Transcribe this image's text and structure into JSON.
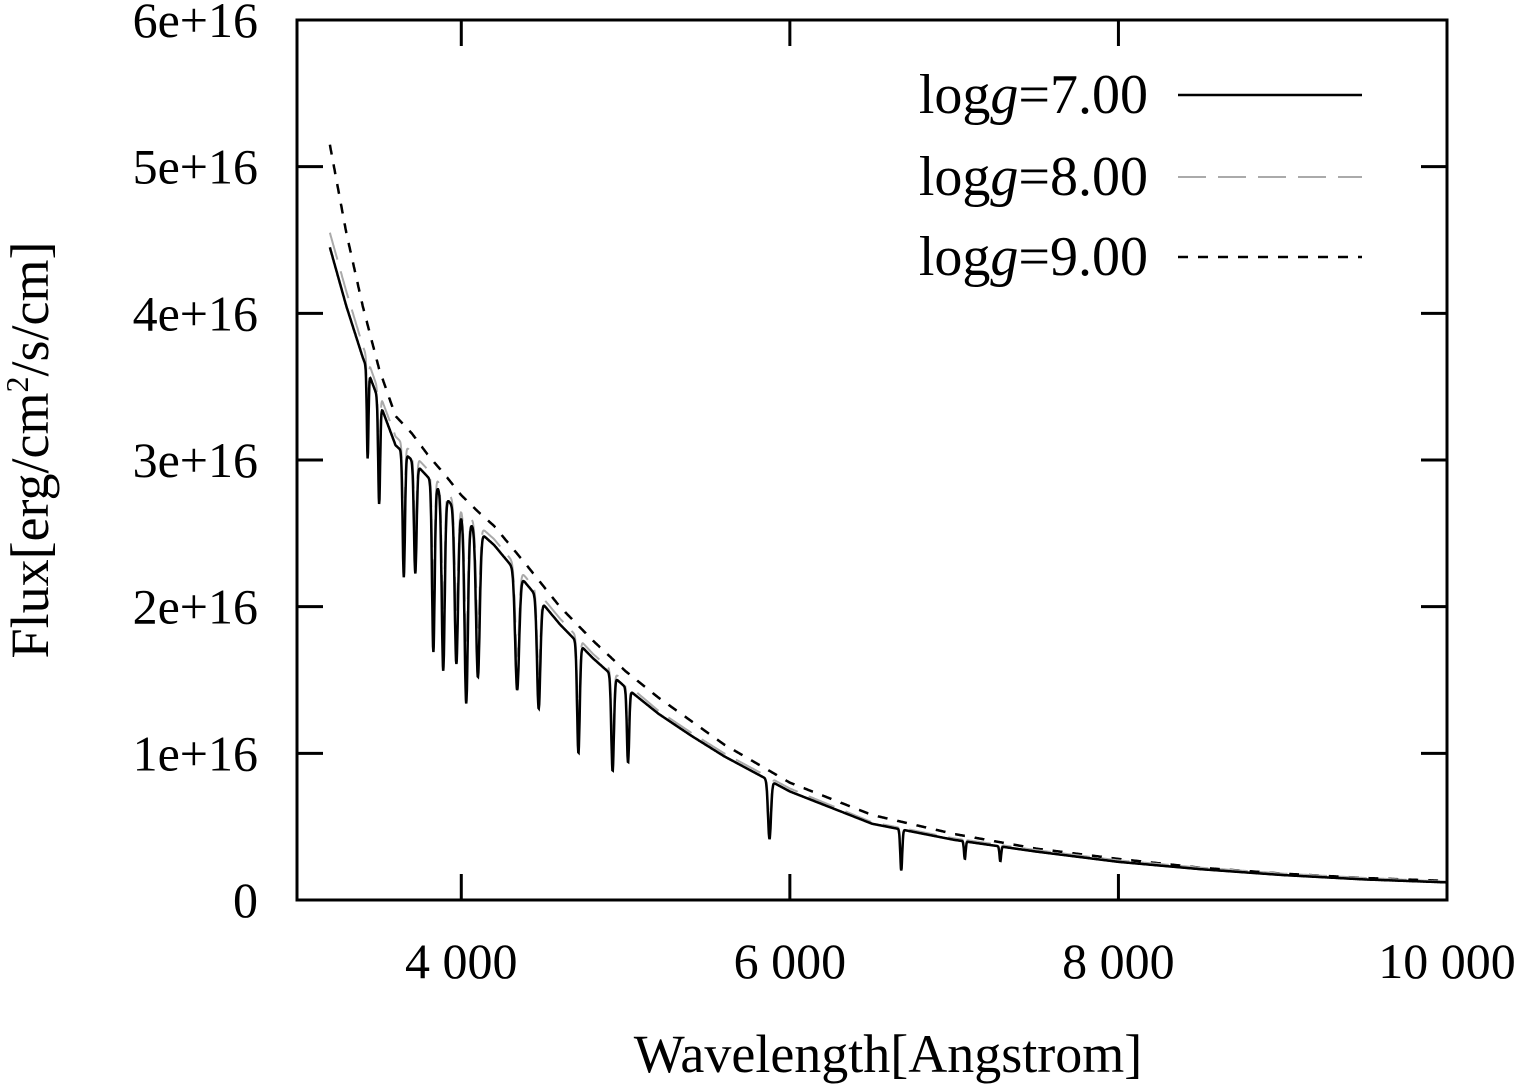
{
  "chart_data": {
    "type": "line",
    "title": "",
    "xlabel": "Wavelength[Angstrom]",
    "ylabel_parts": {
      "prefix": "Flux[erg/cm",
      "sup": "2",
      "suffix": "/s/cm]"
    },
    "xlim": [
      3000,
      10000
    ],
    "ylim": [
      0,
      6e+16
    ],
    "x_ticks": [
      {
        "value": 4000,
        "label": "4 000"
      },
      {
        "value": 6000,
        "label": "6 000"
      },
      {
        "value": 8000,
        "label": "8 000"
      },
      {
        "value": 10000,
        "label": "10 000"
      }
    ],
    "y_ticks": [
      {
        "value": 0,
        "label": "0"
      },
      {
        "value": 1e+16,
        "label": "1e+16"
      },
      {
        "value": 2e+16,
        "label": "2e+16"
      },
      {
        "value": 3e+16,
        "label": "3e+16"
      },
      {
        "value": 4e+16,
        "label": "4e+16"
      },
      {
        "value": 5e+16,
        "label": "5e+16"
      },
      {
        "value": 6e+16,
        "label": "6e+16"
      }
    ],
    "legend_position": "top-right",
    "continuum_wavelengths": [
      3200,
      3300,
      3400,
      3500,
      3600,
      3700,
      3800,
      3900,
      4000,
      4100,
      4200,
      4400,
      4600,
      4800,
      5000,
      5200,
      5400,
      5600,
      5800,
      6000,
      6500,
      7000,
      7500,
      8000,
      8500,
      9000,
      9500,
      10000
    ],
    "absorption_lines": [
      {
        "wavelength": 3430,
        "width": 5
      },
      {
        "wavelength": 3500,
        "width": 6
      },
      {
        "wavelength": 3650,
        "width": 7
      },
      {
        "wavelength": 3720,
        "width": 8
      },
      {
        "wavelength": 3830,
        "width": 8
      },
      {
        "wavelength": 3890,
        "width": 9
      },
      {
        "wavelength": 3970,
        "width": 10
      },
      {
        "wavelength": 4030,
        "width": 10
      },
      {
        "wavelength": 4101,
        "width": 11
      },
      {
        "wavelength": 4340,
        "width": 12
      },
      {
        "wavelength": 4471,
        "width": 10
      },
      {
        "wavelength": 4713,
        "width": 8
      },
      {
        "wavelength": 4921,
        "width": 8
      },
      {
        "wavelength": 5015,
        "width": 7
      },
      {
        "wavelength": 5876,
        "width": 9
      },
      {
        "wavelength": 6678,
        "width": 6
      },
      {
        "wavelength": 7065,
        "width": 5
      },
      {
        "wavelength": 7281,
        "width": 5
      }
    ],
    "series": [
      {
        "name": "logg7",
        "legend_prefix": "log",
        "legend_italic": "g",
        "legend_suffix": "=7.00",
        "dash": "none",
        "color": "#000000",
        "stroke_width": 2.5,
        "continuum": [
          4.45e+16,
          4.05e+16,
          3.7e+16,
          3.4e+16,
          3.1e+16,
          3e+16,
          2.88e+16,
          2.75e+16,
          2.62e+16,
          2.52e+16,
          2.42e+16,
          2.15e+16,
          1.88e+16,
          1.65e+16,
          1.45e+16,
          1.27e+16,
          1.12e+16,
          9800000000000000.0,
          8600000000000000.0,
          7400000000000000.0,
          5200000000000000.0,
          4100000000000000.0,
          3300000000000000.0,
          2600000000000000.0,
          2100000000000000.0,
          1700000000000000.0,
          1400000000000000.0,
          1200000000000000.0
        ],
        "line_depth": [
          6000000000000000.0,
          7000000000000000.0,
          8500000000000000.0,
          7500000000000000.0,
          1.15e+16,
          1.2e+16,
          1.05e+16,
          1.25e+16,
          1e+16,
          8000000000000000.0,
          7500000000000000.0,
          7500000000000000.0,
          6500000000000000.0,
          5000000000000000.0,
          4000000000000000.0,
          2800000000000000.0,
          1200000000000000.0,
          1000000000000000.0
        ]
      },
      {
        "name": "logg8",
        "legend_prefix": "log",
        "legend_italic": "g",
        "legend_suffix": "=8.00",
        "dash": "28 12",
        "color": "#aaaaaa",
        "stroke_width": 2,
        "continuum": [
          4.55e+16,
          4.15e+16,
          3.78e+16,
          3.46e+16,
          3.16e+16,
          3.05e+16,
          2.93e+16,
          2.8e+16,
          2.66e+16,
          2.56e+16,
          2.46e+16,
          2.19e+16,
          1.92e+16,
          1.68e+16,
          1.48e+16,
          1.29e+16,
          1.14e+16,
          1e+16,
          8800000000000000.0,
          7600000000000000.0,
          5300000000000000.0,
          4200000000000000.0,
          3400000000000000.0,
          2700000000000000.0,
          2200000000000000.0,
          1800000000000000.0,
          1500000000000000.0,
          1250000000000000.0
        ],
        "line_depth": [
          4000000000000000.0,
          5000000000000000.0,
          6000000000000000.0,
          5000000000000000.0,
          8000000000000000.0,
          8500000000000000.0,
          7500000000000000.0,
          9000000000000000.0,
          7000000000000000.0,
          6000000000000000.0,
          5500000000000000.0,
          5500000000000000.0,
          5000000000000000.0,
          4000000000000000.0,
          3000000000000000.0,
          2000000000000000.0,
          1000000000000000.0,
          800000000000000.0
        ]
      },
      {
        "name": "logg9",
        "legend_prefix": "log",
        "legend_italic": "g",
        "legend_suffix": "=9.00",
        "dash": "10 10",
        "color": "#000000",
        "stroke_width": 2.5,
        "continuum": [
          5.15e+16,
          4.55e+16,
          4.05e+16,
          3.62e+16,
          3.3e+16,
          3.18e+16,
          3.03e+16,
          2.9e+16,
          2.76e+16,
          2.65e+16,
          2.55e+16,
          2.28e+16,
          2e+16,
          1.77e+16,
          1.56e+16,
          1.38e+16,
          1.22e+16,
          1.06e+16,
          9300000000000000.0,
          8000000000000000.0,
          5800000000000000.0,
          4500000000000000.0,
          3500000000000000.0,
          2800000000000000.0,
          2200000000000000.0,
          1800000000000000.0,
          1500000000000000.0,
          1300000000000000.0
        ]
      }
    ]
  }
}
